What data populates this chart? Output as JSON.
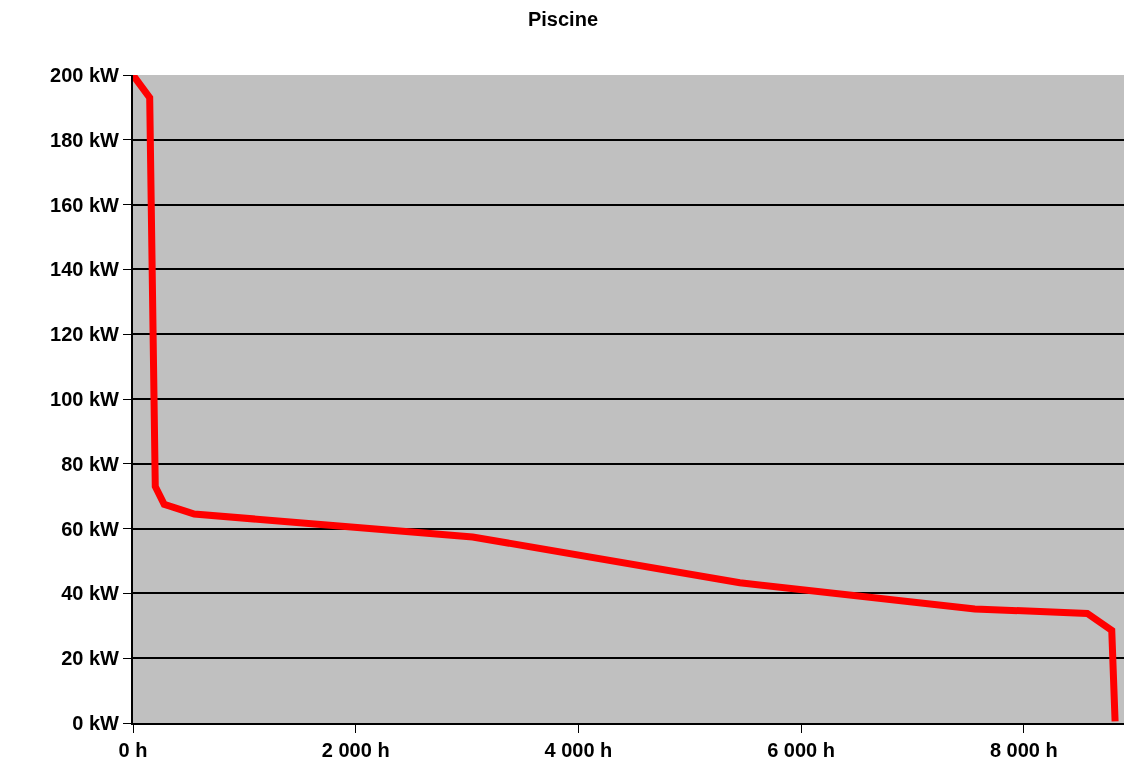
{
  "chart_data": {
    "type": "line",
    "title": "Piscine",
    "x": [
      0,
      150,
      200,
      280,
      550,
      3050,
      5450,
      7560,
      8570,
      8790,
      8820
    ],
    "series": [
      {
        "color": "#ff0000",
        "values": [
          200,
          193,
          73,
          67.5,
          64.5,
          57.4,
          43.3,
          35.2,
          33.8,
          28.6,
          0.5
        ]
      }
    ],
    "xlim": [
      0,
      8900
    ],
    "xticks": [
      {
        "value": 0,
        "label": "0 h"
      },
      {
        "value": 2000,
        "label": "2 000 h"
      },
      {
        "value": 4000,
        "label": "4 000 h"
      },
      {
        "value": 6000,
        "label": "6 000 h"
      },
      {
        "value": 8000,
        "label": "8 000 h"
      }
    ],
    "ylim": [
      0,
      200
    ],
    "yticks": [
      {
        "value": 0,
        "label": "0 kW"
      },
      {
        "value": 20,
        "label": "20 kW"
      },
      {
        "value": 40,
        "label": "40 kW"
      },
      {
        "value": 60,
        "label": "60 kW"
      },
      {
        "value": 80,
        "label": "80 kW"
      },
      {
        "value": 100,
        "label": "100 kW"
      },
      {
        "value": 120,
        "label": "120 kW"
      },
      {
        "value": 140,
        "label": "140 kW"
      },
      {
        "value": 160,
        "label": "160 kW"
      },
      {
        "value": 180,
        "label": "180 kW"
      },
      {
        "value": 200,
        "label": "200 kW"
      }
    ],
    "grid": "y",
    "marker": "none",
    "line_style": "solid"
  }
}
